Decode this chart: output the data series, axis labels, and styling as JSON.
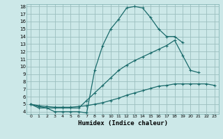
{
  "xlabel": "Humidex (Indice chaleur)",
  "bg_color": "#cce8e8",
  "grid_color": "#9bbfbf",
  "line_color": "#1a6b6b",
  "xlim": [
    -0.5,
    23.5
  ],
  "ylim": [
    3.7,
    18.3
  ],
  "xticks": [
    0,
    1,
    2,
    3,
    4,
    5,
    6,
    7,
    8,
    9,
    10,
    11,
    12,
    13,
    14,
    15,
    16,
    17,
    18,
    19,
    20,
    21,
    22,
    23
  ],
  "yticks": [
    4,
    5,
    6,
    7,
    8,
    9,
    10,
    11,
    12,
    13,
    14,
    15,
    16,
    17,
    18
  ],
  "line1_x": [
    0,
    1,
    2,
    3,
    4,
    5,
    6,
    7,
    8,
    9,
    10,
    11,
    12,
    13,
    14,
    15,
    16,
    17,
    18,
    19,
    20,
    21
  ],
  "line1_y": [
    5,
    4.5,
    4.5,
    4,
    4,
    4,
    4,
    3.85,
    9.5,
    12.8,
    15.0,
    16.3,
    17.8,
    18.0,
    17.8,
    16.5,
    15.0,
    14.0,
    14.0,
    13.2,
    null,
    null
  ],
  "line2_x": [
    0,
    1,
    2,
    3,
    4,
    5,
    6,
    7,
    8,
    9,
    10,
    11,
    12,
    13,
    14,
    15,
    16,
    17,
    18,
    19,
    20,
    21,
    22,
    23
  ],
  "line2_y": [
    5,
    4.7,
    4.5,
    4.5,
    4.5,
    4.5,
    4.5,
    5.5,
    6.5,
    7.5,
    8.5,
    9.5,
    10.2,
    10.8,
    11.3,
    11.8,
    12.3,
    12.8,
    13.5,
    11.5,
    9.5,
    9.2,
    null,
    null
  ],
  "line3_x": [
    0,
    1,
    2,
    3,
    4,
    5,
    6,
    7,
    8,
    9,
    10,
    11,
    12,
    13,
    14,
    15,
    16,
    17,
    18,
    19,
    20,
    21,
    22,
    23
  ],
  "line3_y": [
    5,
    4.8,
    4.7,
    4.6,
    4.6,
    4.6,
    4.7,
    4.8,
    5.0,
    5.2,
    5.5,
    5.8,
    6.2,
    6.5,
    6.8,
    7.1,
    7.4,
    7.5,
    7.7,
    7.7,
    7.7,
    7.7,
    7.7,
    7.5
  ]
}
